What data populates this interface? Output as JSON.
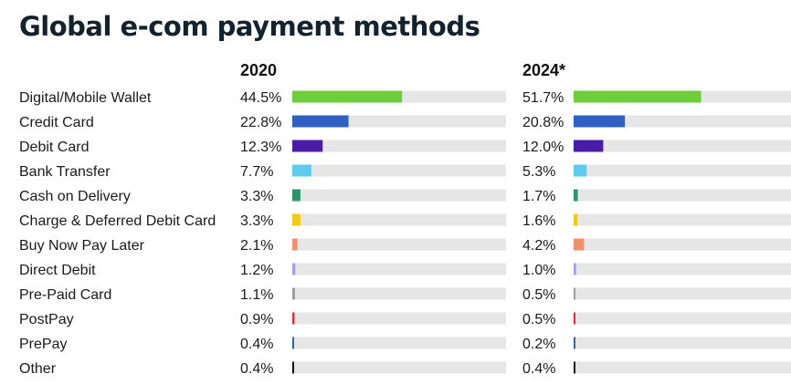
{
  "title": "Global e-com payment methods",
  "chart_data": {
    "type": "bar",
    "orientation": "horizontal",
    "title": "Global e-com payment methods",
    "categories": [
      "Digital/Mobile Wallet",
      "Credit Card",
      "Debit Card",
      "Bank Transfer",
      "Cash on Delivery",
      "Charge & Deferred Debit Card",
      "Buy Now Pay Later",
      "Direct Debit",
      "Pre-Paid Card",
      "PostPay",
      "PrePay",
      "Other"
    ],
    "series": [
      {
        "name": "2020",
        "values": [
          44.5,
          22.8,
          12.3,
          7.7,
          3.3,
          3.3,
          2.1,
          1.2,
          1.1,
          0.9,
          0.4,
          0.4
        ],
        "labels": [
          "44.5%",
          "22.8%",
          "12.3%",
          "7.7%",
          "3.3%",
          "3.3%",
          "2.1%",
          "1.2%",
          "1.1%",
          "0.9%",
          "0.4%",
          "0.4%"
        ]
      },
      {
        "name": "2024*",
        "values": [
          51.7,
          20.8,
          12.0,
          5.3,
          1.7,
          1.6,
          4.2,
          1.0,
          0.5,
          0.5,
          0.2,
          0.4
        ],
        "labels": [
          "51.7%",
          "20.8%",
          "12.0%",
          "5.3%",
          "1.7%",
          "1.6%",
          "4.2%",
          "1.0%",
          "0.5%",
          "0.5%",
          "0.2%",
          "0.4%"
        ]
      }
    ],
    "colors": [
      "#6ccf3a",
      "#2e5fc4",
      "#4a1aa8",
      "#5ccdee",
      "#2e9470",
      "#f2cc0c",
      "#f2906e",
      "#a59ee6",
      "#9e9e9e",
      "#e02a3d",
      "#2b6e9e",
      "#111111"
    ],
    "track_color": "#e6e6e6",
    "xlim": [
      0,
      100
    ],
    "legend": "none",
    "grid": false
  }
}
